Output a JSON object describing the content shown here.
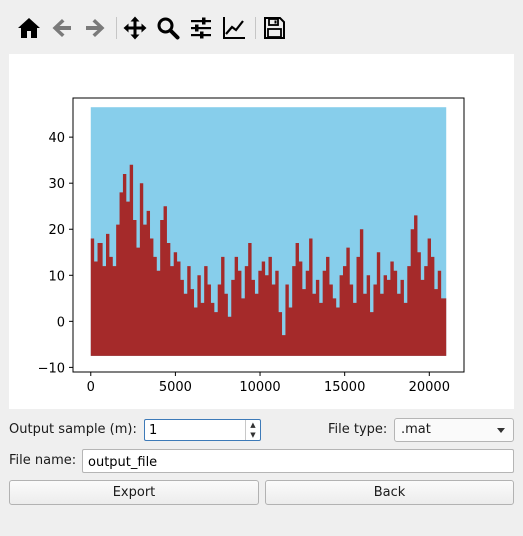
{
  "toolbar": {
    "buttons": [
      {
        "name": "home-button",
        "icon": "home-icon"
      },
      {
        "name": "back-button",
        "icon": "arrow-left-icon"
      },
      {
        "name": "forward-button",
        "icon": "arrow-right-icon"
      },
      {
        "name": "pan-button",
        "icon": "move-icon"
      },
      {
        "name": "zoom-button",
        "icon": "magnifier-icon"
      },
      {
        "name": "configure-subplots-button",
        "icon": "sliders-icon"
      },
      {
        "name": "edit-axes-button",
        "icon": "line-chart-icon"
      },
      {
        "name": "save-figure-button",
        "icon": "floppy-disk-icon"
      }
    ]
  },
  "chart_data": {
    "type": "area",
    "title": "",
    "xlabel": "",
    "ylabel": "",
    "xlim": [
      -1050,
      22050
    ],
    "ylim": [
      -11,
      48.5
    ],
    "xticks": [
      0,
      5000,
      10000,
      15000,
      20000
    ],
    "yticks": [
      -10,
      0,
      10,
      20,
      30,
      40
    ],
    "grid": false,
    "series": [
      {
        "role": "upper band",
        "color": "#87ceeb",
        "x": [
          0,
          21000
        ],
        "y": [
          46.5,
          46.5
        ]
      },
      {
        "role": "lower band",
        "color": "#a52a2a",
        "baseline": -7.5,
        "x": [
          0,
          200,
          400,
          700,
          900,
          1100,
          1300,
          1500,
          1700,
          1900,
          2100,
          2300,
          2500,
          2700,
          2900,
          3100,
          3300,
          3500,
          3700,
          3900,
          4100,
          4300,
          4500,
          4700,
          4900,
          5100,
          5300,
          5500,
          5700,
          5900,
          6100,
          6300,
          6500,
          6700,
          6900,
          7100,
          7300,
          7500,
          7700,
          7900,
          8100,
          8300,
          8500,
          8700,
          8900,
          9100,
          9300,
          9500,
          9700,
          9900,
          10100,
          10300,
          10500,
          10700,
          10900,
          11100,
          11300,
          11500,
          11700,
          11900,
          12100,
          12300,
          12500,
          12700,
          12900,
          13100,
          13300,
          13500,
          13700,
          13900,
          14100,
          14300,
          14500,
          14700,
          14900,
          15100,
          15300,
          15500,
          15700,
          15900,
          16100,
          16300,
          16500,
          16700,
          16900,
          17100,
          17300,
          17500,
          17700,
          17900,
          18100,
          18300,
          18500,
          18700,
          18900,
          19100,
          19300,
          19500,
          19700,
          19900,
          20100,
          20300,
          20500,
          20700,
          21000
        ],
        "y": [
          18,
          13,
          17,
          12,
          19,
          14,
          12,
          21,
          28,
          32,
          26,
          34,
          22,
          16,
          30,
          21,
          24,
          18,
          14,
          11,
          22,
          25,
          17,
          12,
          15,
          13,
          9,
          6,
          12,
          7,
          3,
          10,
          4,
          12,
          8,
          4,
          2,
          8,
          14,
          6,
          1,
          9,
          14,
          11,
          5,
          12,
          17,
          9,
          6,
          11,
          13,
          10,
          14,
          8,
          11,
          2,
          -3,
          8,
          3,
          12,
          17,
          13,
          7,
          11,
          18,
          6,
          9,
          4,
          11,
          14,
          8,
          5,
          3,
          10,
          12,
          16,
          8,
          4,
          14,
          20,
          6,
          10,
          2,
          8,
          15,
          6,
          10,
          9,
          13,
          11,
          6,
          9,
          4,
          12,
          20,
          23,
          15,
          9,
          12,
          18,
          14,
          7,
          11,
          5,
          5
        ]
      }
    ]
  },
  "form": {
    "output_sample_label": "Output sample (m):",
    "output_sample_value": "1",
    "file_type_label": "File type:",
    "file_type_value": ".mat",
    "file_name_label": "File name:",
    "file_name_value": "output_file",
    "export_label": "Export",
    "back_label": "Back"
  }
}
